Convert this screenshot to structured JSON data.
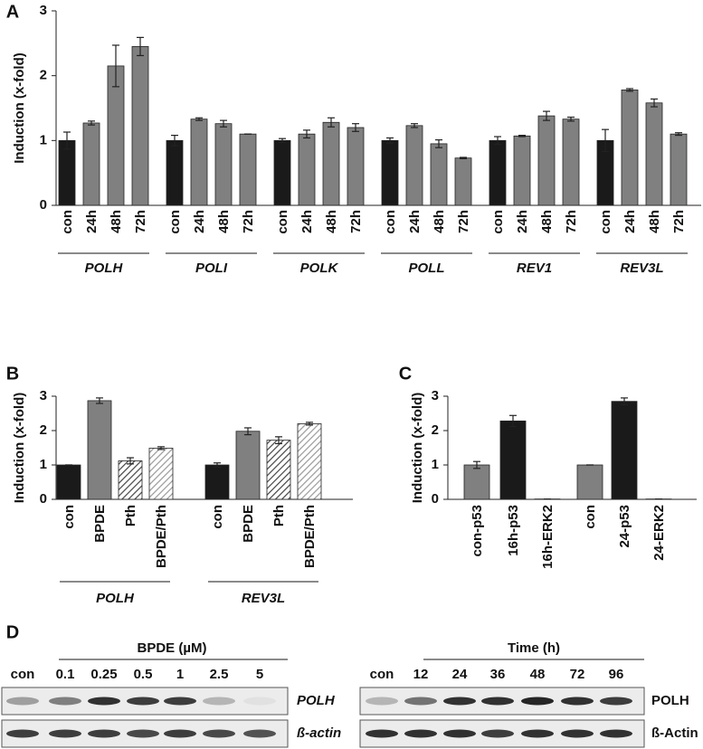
{
  "chart_data": [
    {
      "type": "bar",
      "panel": "A",
      "y_label": "Induction (x-fold)",
      "ylim": [
        0,
        3
      ],
      "yticks": [
        0,
        1,
        2,
        3
      ],
      "bar_colors": [
        "#1a1a1a",
        "#808080",
        "#808080",
        "#808080"
      ],
      "groups": [
        {
          "name": "POLH",
          "categories": [
            "con",
            "24h",
            "48h",
            "72h"
          ],
          "values": [
            1.0,
            1.27,
            2.15,
            2.45
          ],
          "errors": [
            0.13,
            0.03,
            0.32,
            0.14
          ]
        },
        {
          "name": "POLI",
          "categories": [
            "con",
            "24h",
            "48h",
            "72h"
          ],
          "values": [
            1.0,
            1.33,
            1.26,
            1.1
          ],
          "errors": [
            0.08,
            0.02,
            0.05,
            0.0
          ]
        },
        {
          "name": "POLK",
          "categories": [
            "con",
            "24h",
            "48h",
            "72h"
          ],
          "values": [
            1.0,
            1.1,
            1.28,
            1.2
          ],
          "errors": [
            0.03,
            0.06,
            0.07,
            0.06
          ]
        },
        {
          "name": "POLL",
          "categories": [
            "con",
            "24h",
            "48h",
            "72h"
          ],
          "values": [
            1.0,
            1.23,
            0.95,
            0.73
          ],
          "errors": [
            0.04,
            0.03,
            0.06,
            0.01
          ]
        },
        {
          "name": "REV1",
          "categories": [
            "con",
            "24h",
            "48h",
            "72h"
          ],
          "values": [
            1.0,
            1.07,
            1.38,
            1.33
          ],
          "errors": [
            0.06,
            0.01,
            0.07,
            0.03
          ]
        },
        {
          "name": "REV3L",
          "categories": [
            "con",
            "24h",
            "48h",
            "72h"
          ],
          "values": [
            1.0,
            1.78,
            1.58,
            1.1
          ],
          "errors": [
            0.17,
            0.02,
            0.06,
            0.02
          ]
        }
      ]
    },
    {
      "type": "bar",
      "panel": "B",
      "y_label": "Induction (x-fold)",
      "ylim": [
        0,
        3
      ],
      "yticks": [
        0,
        1,
        2,
        3
      ],
      "bar_colors": [
        "#1a1a1a",
        "#808080",
        "#444444",
        "#999999"
      ],
      "bar_patterns": [
        "none",
        "none",
        "hatch",
        "hatch"
      ],
      "groups": [
        {
          "name": "POLH",
          "categories": [
            "con",
            "BPDE",
            "Pth",
            "BPDE/Pth"
          ],
          "values": [
            1.0,
            2.87,
            1.12,
            1.49
          ],
          "errors": [
            0.0,
            0.08,
            0.09,
            0.04
          ]
        },
        {
          "name": "REV3L",
          "categories": [
            "con",
            "BPDE",
            "Pth",
            "BPDE/Pth"
          ],
          "values": [
            1.0,
            1.98,
            1.72,
            2.2
          ],
          "errors": [
            0.06,
            0.1,
            0.1,
            0.04
          ]
        }
      ]
    },
    {
      "type": "bar",
      "panel": "C",
      "y_label": "Induction (x-fold)",
      "ylim": [
        0,
        3
      ],
      "yticks": [
        0,
        1,
        2,
        3
      ],
      "categories": [
        "con-p53",
        "16h-p53",
        "16h-ERK2",
        "con",
        "24-p53",
        "24-ERK2"
      ],
      "values": [
        1.0,
        2.28,
        0.01,
        1.0,
        2.85,
        0.01
      ],
      "errors": [
        0.1,
        0.16,
        0.0,
        0.0,
        0.1,
        0.0
      ],
      "colors": [
        "#808080",
        "#1a1a1a",
        "#1a1a1a",
        "#808080",
        "#1a1a1a",
        "#1a1a1a"
      ]
    }
  ],
  "panel_d": {
    "letter": "D",
    "blots": [
      {
        "title": "BPDE (µM)",
        "lanes": [
          "con",
          "0.1",
          "0.25",
          "0.5",
          "1",
          "2.5",
          "5"
        ],
        "rows": [
          "POLH",
          "ß-actin"
        ]
      },
      {
        "title": "Time (h)",
        "lanes": [
          "con",
          "12",
          "24",
          "36",
          "48",
          "72",
          "96"
        ],
        "rows": [
          "POLH",
          "ß-Actin"
        ]
      }
    ]
  }
}
